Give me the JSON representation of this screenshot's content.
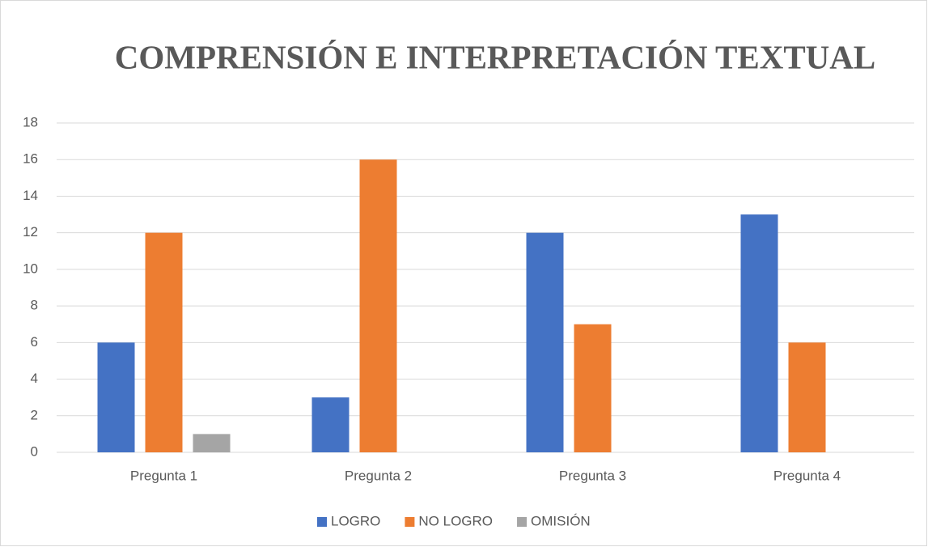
{
  "chart_data": {
    "type": "bar",
    "title": "COMPRENSIÓN E INTERPRETACIÓN TEXTUAL",
    "categories": [
      "Pregunta 1",
      "Pregunta 2",
      "Pregunta 3",
      "Pregunta 4"
    ],
    "series": [
      {
        "name": "LOGRO",
        "color": "#4472c4",
        "values": [
          6,
          3,
          12,
          13
        ]
      },
      {
        "name": "NO LOGRO",
        "color": "#ed7d31",
        "values": [
          12,
          16,
          7,
          6
        ]
      },
      {
        "name": "OMISIÓN",
        "color": "#a5a5a5",
        "values": [
          1,
          0,
          0,
          0
        ]
      }
    ],
    "ylim": [
      0,
      18
    ],
    "yticks": [
      0,
      2,
      4,
      6,
      8,
      10,
      12,
      14,
      16,
      18
    ],
    "grid": true,
    "legend": "bottom"
  }
}
